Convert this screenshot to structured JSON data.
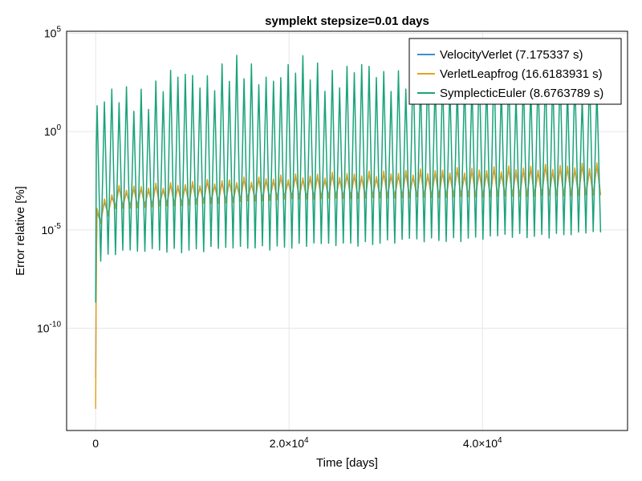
{
  "chart_data": {
    "type": "line",
    "title": "symplekt stepsize=0.01 days",
    "xlabel": "Time [days]",
    "ylabel": "Error relative [%]",
    "y_scale": "log10",
    "xlim": [
      -3000,
      55000
    ],
    "ylim_log10": [
      -15.2,
      5.1
    ],
    "grid": true,
    "legend_position": "top-right",
    "x_ticks": [
      {
        "value": 0,
        "base": "0",
        "exp": ""
      },
      {
        "value": 20000,
        "base": "2.0×10",
        "exp": "4"
      },
      {
        "value": 40000,
        "base": "4.0×10",
        "exp": "4"
      }
    ],
    "y_ticks": [
      {
        "log": 5,
        "base": "10",
        "exp": "5"
      },
      {
        "log": 0,
        "base": "10",
        "exp": "0"
      },
      {
        "log": -5,
        "base": "10",
        "exp": "-5"
      },
      {
        "log": -10,
        "base": "10",
        "exp": "-10"
      }
    ],
    "x_end": 52500,
    "period_days": 760,
    "series": [
      {
        "name": "VelocityVerlet (7.175337 s)",
        "color": "#3a8fd8",
        "start_log": -12.5,
        "band_low_log": [
          [
            0,
            -4.8
          ],
          [
            2000,
            -3.8
          ],
          [
            20000,
            -3.3
          ],
          [
            52500,
            -3.2
          ]
        ],
        "band_high_log": [
          [
            0,
            -4.2
          ],
          [
            2000,
            -3.0
          ],
          [
            20000,
            -2.4
          ],
          [
            52500,
            -1.8
          ]
        ]
      },
      {
        "name": "VerletLeapfrog (16.6183931 s)",
        "color": "#e5a224",
        "start_log": -14.1,
        "band_low_log": [
          [
            0,
            -4.9
          ],
          [
            2000,
            -3.9
          ],
          [
            20000,
            -3.4
          ],
          [
            52500,
            -3.2
          ]
        ],
        "band_high_log": [
          [
            0,
            -4.0
          ],
          [
            2000,
            -2.9
          ],
          [
            20000,
            -2.3
          ],
          [
            52500,
            -1.7
          ]
        ]
      },
      {
        "name": "SymplecticEuler (8.6763789 s)",
        "color": "#1aa37a",
        "start_log": -8.7,
        "band_low_log": [
          [
            0,
            -6.5
          ],
          [
            2000,
            -6.0
          ],
          [
            20000,
            -5.7
          ],
          [
            52500,
            -5.0
          ]
        ],
        "band_high_log": [
          [
            0,
            1.3
          ],
          [
            2000,
            1.5
          ],
          [
            10000,
            2.8
          ],
          [
            20000,
            3.0
          ],
          [
            52500,
            2.7
          ]
        ]
      }
    ]
  }
}
